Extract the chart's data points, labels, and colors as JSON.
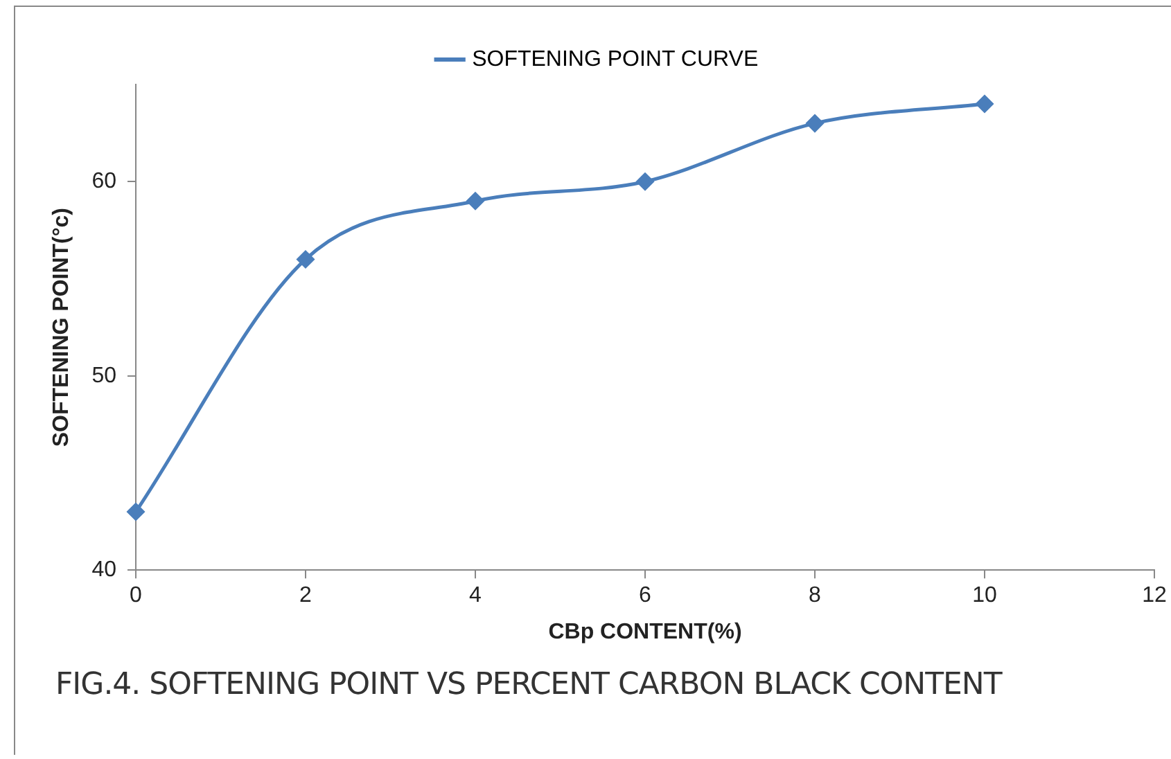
{
  "chart_data": {
    "type": "line",
    "x": [
      0,
      2,
      4,
      6,
      8,
      10
    ],
    "series": [
      {
        "name": "SOFTENING POINT CURVE",
        "color": "#4a7ebb",
        "values": [
          43,
          56,
          59,
          60,
          63,
          64
        ]
      }
    ],
    "xlabel": "CBp CONTENT(%)",
    "ylabel": "SOFTENING POINT(°c)",
    "xlim": [
      0,
      12
    ],
    "xticks": [
      0,
      2,
      4,
      6,
      8,
      10,
      12
    ],
    "ylim": [
      40,
      65
    ],
    "yticks": [
      40,
      50,
      60
    ],
    "marker": "diamond",
    "line_style": "solid",
    "legend": "top",
    "annotations": [
      "FIG.4. SOFTENING POINT VS  PERCENT CARBON BLACK CONTENT"
    ]
  }
}
